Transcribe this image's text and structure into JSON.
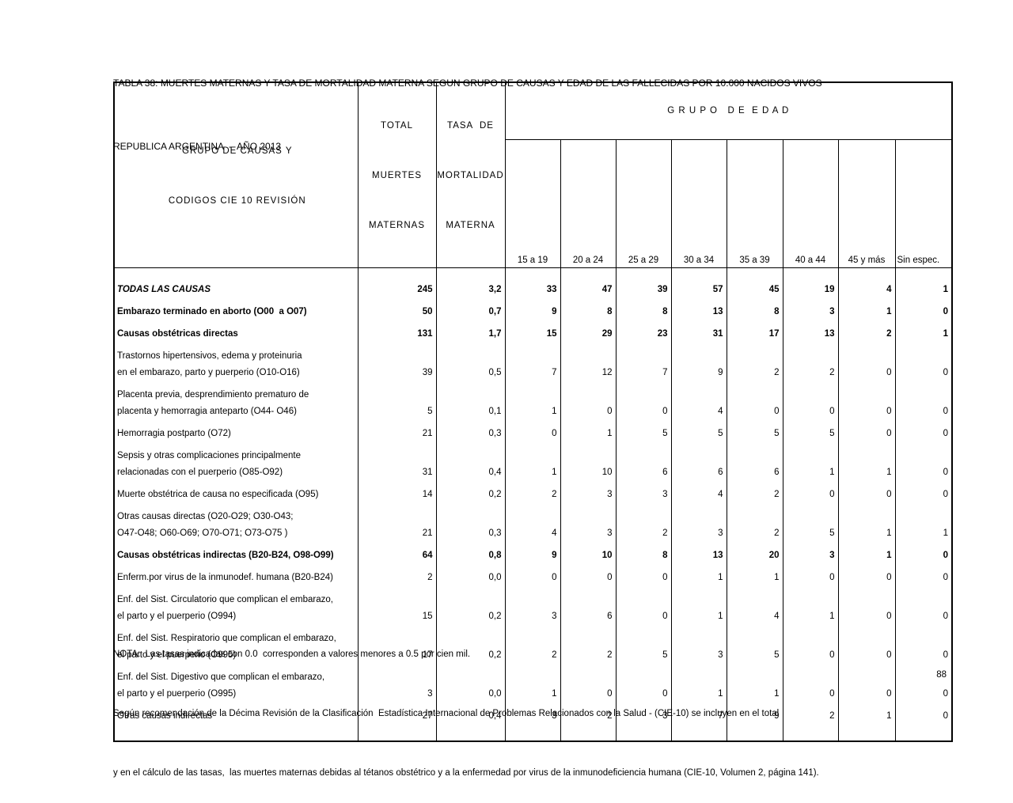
{
  "colors": {
    "text": "#000000",
    "background": "#ffffff",
    "border": "#000000"
  },
  "page": {
    "title_line1": "TABLA 38: MUERTES MATERNAS Y TASA DE MORTALIDAD MATERNA SEGUN GRUPO DE CAUSAS Y EDAD DE LAS FALLECIDAS POR 10.000 NACIDOS VIVOS",
    "title_line2": "REPUBLICA ARGENTINA  -  AÑO 2013",
    "page_number": "88"
  },
  "table": {
    "header": {
      "cause_line1": "GRUPO DE CAUSAS Y",
      "cause_line2": "CODIGOS CIE 10 REVISIÓN",
      "total_lines": [
        "TOTAL",
        "MUERTES",
        "MATERNAS"
      ],
      "rate_lines": [
        "TASA  DE",
        "MORTALIDAD",
        "MATERNA"
      ],
      "age_group_title": "G R U P O   D E  E D A D",
      "age_columns": [
        "15 a 19",
        "20 a 24",
        "25 a 29",
        "30 a 34",
        "35 a 39",
        "40 a 44",
        "45 y más",
        "Sin espec."
      ]
    },
    "rows": [
      {
        "label_lines": [
          "TODAS LAS CAUSAS"
        ],
        "style": "bold-italic",
        "total": "245",
        "rate": "3,2",
        "ages": [
          "33",
          "47",
          "39",
          "57",
          "45",
          "19",
          "4",
          "1"
        ]
      },
      {
        "label_lines": [
          "Embarazo terminado en aborto (O00  a O07)"
        ],
        "style": "bold",
        "total": "50",
        "rate": "0,7",
        "ages": [
          "9",
          "8",
          "8",
          "13",
          "8",
          "3",
          "1",
          "0"
        ]
      },
      {
        "label_lines": [
          "Causas obstétricas directas"
        ],
        "style": "bold",
        "total": "131",
        "rate": "1,7",
        "ages": [
          "15",
          "29",
          "23",
          "31",
          "17",
          "13",
          "2",
          "1"
        ]
      },
      {
        "label_lines": [
          "Trastornos hipertensivos, edema y proteinuria",
          "en el embarazo, parto y puerperio (O10-O16)"
        ],
        "style": "normal",
        "total": "39",
        "rate": "0,5",
        "ages": [
          "7",
          "12",
          "7",
          "9",
          "2",
          "2",
          "0",
          "0"
        ]
      },
      {
        "label_lines": [
          "Placenta previa, desprendimiento prematuro de",
          "placenta y hemorragia anteparto (O44- O46)"
        ],
        "style": "normal",
        "total": "5",
        "rate": "0,1",
        "ages": [
          "1",
          "0",
          "0",
          "4",
          "0",
          "0",
          "0",
          "0"
        ]
      },
      {
        "label_lines": [
          "Hemorragia postparto (O72)"
        ],
        "style": "normal",
        "total": "21",
        "rate": "0,3",
        "ages": [
          "0",
          "1",
          "5",
          "5",
          "5",
          "5",
          "0",
          "0"
        ]
      },
      {
        "label_lines": [
          "Sepsis y otras complicaciones principalmente",
          "relacionadas con el puerperio (O85-O92)"
        ],
        "style": "normal",
        "total": "31",
        "rate": "0,4",
        "ages": [
          "1",
          "10",
          "6",
          "6",
          "6",
          "1",
          "1",
          "0"
        ]
      },
      {
        "label_lines": [
          "Muerte obstétrica de causa no especificada (O95)"
        ],
        "style": "normal",
        "total": "14",
        "rate": "0,2",
        "ages": [
          "2",
          "3",
          "3",
          "4",
          "2",
          "0",
          "0",
          "0"
        ]
      },
      {
        "label_lines": [
          "Otras causas directas (O20-O29; O30-O43;",
          "O47-O48; O60-O69; O70-O71; O73-O75 )"
        ],
        "style": "normal",
        "total": "21",
        "rate": "0,3",
        "ages": [
          "4",
          "3",
          "2",
          "3",
          "2",
          "5",
          "1",
          "1"
        ]
      },
      {
        "label_lines": [
          "Causas obstétricas indirectas (B20-B24, O98-O99)"
        ],
        "style": "bold",
        "total": "64",
        "rate": "0,8",
        "ages": [
          "9",
          "10",
          "8",
          "13",
          "20",
          "3",
          "1",
          "0"
        ]
      },
      {
        "label_lines": [
          "Enferm.por virus de la inmunodef. humana (B20-B24)"
        ],
        "style": "normal",
        "total": "2",
        "rate": "0,0",
        "ages": [
          "0",
          "0",
          "0",
          "1",
          "1",
          "0",
          "0",
          "0"
        ]
      },
      {
        "label_lines": [
          "Enf. del Sist. Circulatorio que complican el embarazo,",
          "el parto y el puerperio (O994)"
        ],
        "style": "normal",
        "total": "15",
        "rate": "0,2",
        "ages": [
          "3",
          "6",
          "0",
          "1",
          "4",
          "1",
          "0",
          "0"
        ]
      },
      {
        "label_lines": [
          "Enf. del Sist. Respiratorio que complican el embarazo,",
          "el parto y el puerperio (O995)"
        ],
        "style": "normal",
        "total": "17",
        "rate": "0,2",
        "ages": [
          "2",
          "2",
          "5",
          "3",
          "5",
          "0",
          "0",
          "0"
        ]
      },
      {
        "label_lines": [
          "Enf. del Sist. Digestivo que complican el embarazo,",
          "el parto y el puerperio (O995)"
        ],
        "style": "normal",
        "total": "3",
        "rate": "0,0",
        "ages": [
          "1",
          "0",
          "0",
          "1",
          "1",
          "0",
          "0",
          "0"
        ]
      },
      {
        "label_lines": [
          "Otras causas indirectas"
        ],
        "style": "normal",
        "total": "27",
        "rate": "0,4",
        "ages": [
          "3",
          "2",
          "3",
          "7",
          "9",
          "2",
          "1",
          "0"
        ]
      }
    ]
  },
  "notes": {
    "line1": "NOTA:  Las tasas indicadas con 0.0  corresponden a valores menores a 0.5 por cien mil.",
    "line2": "Según recomendación de la Décima Revisión de la Clasificación  Estadística Internacional de Problemas Relacionados con la Salud - (CIE-10) se incluyen en el total",
    "line3": "y en el cálculo de las tasas,  las muertes maternas debidas al tétanos obstétrico y a la enfermedad por virus de la inmunodeficiencia humana (CIE-10, Volumen 2, página 141)."
  }
}
